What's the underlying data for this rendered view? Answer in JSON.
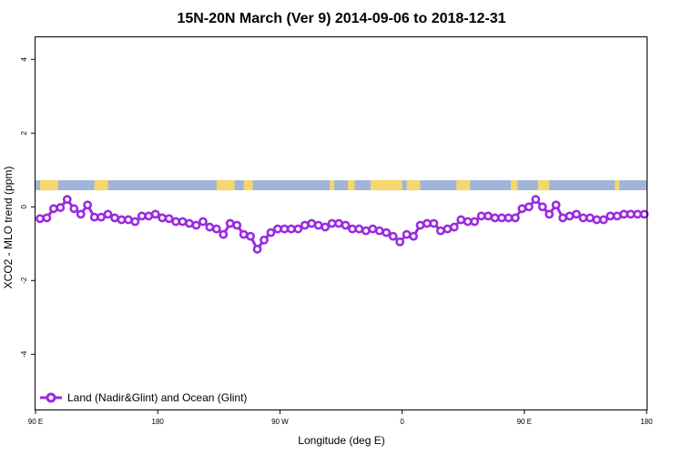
{
  "chart_data": {
    "type": "line",
    "title": "15N-20N March (Ver 9)   2014-09-06 to 2018-12-31",
    "xlabel": "Longitude (deg E)",
    "ylabel": "XCO2 - MLO trend (ppm)",
    "xlim": [
      -90,
      180
    ],
    "ylim": [
      -5.5,
      4.6
    ],
    "x_axis_note": "Longitude axis spans 450 degrees, wrapping from 90 E around to 180 (left to right: 90E, 180, 90W, 0, 90E, 180)",
    "x_ticks": [
      {
        "pos": -90,
        "label": "90 E"
      },
      {
        "pos": -36,
        "label": "180"
      },
      {
        "pos": 18,
        "label": "90 W"
      },
      {
        "pos": 72,
        "label": "0"
      },
      {
        "pos": 126,
        "label": "90 E"
      },
      {
        "pos": 180,
        "label": "180"
      }
    ],
    "y_ticks": [
      {
        "value": -4,
        "label": "-4"
      },
      {
        "value": -2,
        "label": "-2"
      },
      {
        "value": 0,
        "label": "0"
      },
      {
        "value": 2,
        "label": "2"
      },
      {
        "value": 4,
        "label": "4"
      }
    ],
    "grid": false,
    "legend_position": "bottom-left",
    "series": [
      {
        "name": "Land (Nadir&Glint) and Ocean (Glint)",
        "color": "#9a2be0",
        "x": [
          -88,
          -85,
          -82,
          -79,
          -76,
          -73,
          -70,
          -67,
          -64,
          -61,
          -58,
          -55,
          -52,
          -49,
          -46,
          -43,
          -40,
          -37,
          -34,
          -31,
          -28,
          -25,
          -22,
          -19,
          -16,
          -13,
          -10,
          -7,
          -4,
          -1,
          2,
          5,
          8,
          11,
          14,
          17,
          20,
          23,
          26,
          29,
          32,
          35,
          38,
          41,
          44,
          47,
          50,
          53,
          56,
          59,
          62,
          65,
          68,
          71,
          74,
          77,
          80,
          83,
          86,
          89,
          92,
          95,
          98,
          101,
          104,
          107,
          110,
          113,
          116,
          119,
          122,
          125,
          128,
          131,
          134,
          137,
          140,
          143,
          146,
          149,
          152,
          155,
          158,
          161,
          164,
          167,
          170,
          173,
          176,
          179
        ],
        "y": [
          -0.32,
          -0.3,
          -0.05,
          -0.02,
          0.2,
          -0.05,
          -0.2,
          0.05,
          -0.28,
          -0.28,
          -0.2,
          -0.3,
          -0.35,
          -0.35,
          -0.4,
          -0.25,
          -0.25,
          -0.2,
          -0.3,
          -0.32,
          -0.4,
          -0.4,
          -0.45,
          -0.5,
          -0.4,
          -0.55,
          -0.6,
          -0.75,
          -0.45,
          -0.5,
          -0.75,
          -0.8,
          -1.15,
          -0.9,
          -0.7,
          -0.6,
          -0.6,
          -0.6,
          -0.6,
          -0.5,
          -0.45,
          -0.5,
          -0.55,
          -0.45,
          -0.45,
          -0.5,
          -0.6,
          -0.6,
          -0.65,
          -0.6,
          -0.65,
          -0.7,
          -0.8,
          -0.95,
          -0.75,
          -0.8,
          -0.5,
          -0.45,
          -0.45,
          -0.65,
          -0.6,
          -0.55,
          -0.35,
          -0.4,
          -0.4,
          -0.25,
          -0.25,
          -0.3,
          -0.3,
          -0.3,
          -0.3,
          -0.05,
          0.0,
          0.2,
          0.0,
          -0.2,
          0.05,
          -0.3,
          -0.25,
          -0.2,
          -0.3,
          -0.3,
          -0.35,
          -0.35,
          -0.25,
          -0.25,
          -0.2,
          -0.2,
          -0.2,
          -0.2
        ]
      }
    ],
    "map_band": {
      "y_range": [
        0.45,
        0.72
      ],
      "ocean_color": "#9fb4d8",
      "land_color": "#f6d76b",
      "land_x_ranges": [
        [
          -88,
          -80
        ],
        [
          -64,
          -58
        ],
        [
          -10,
          -2
        ],
        [
          2,
          6
        ],
        [
          40,
          42
        ],
        [
          48,
          51
        ],
        [
          58,
          72
        ],
        [
          74,
          80
        ],
        [
          96,
          102
        ],
        [
          120,
          123
        ],
        [
          132,
          137
        ],
        [
          166,
          168
        ]
      ]
    }
  }
}
